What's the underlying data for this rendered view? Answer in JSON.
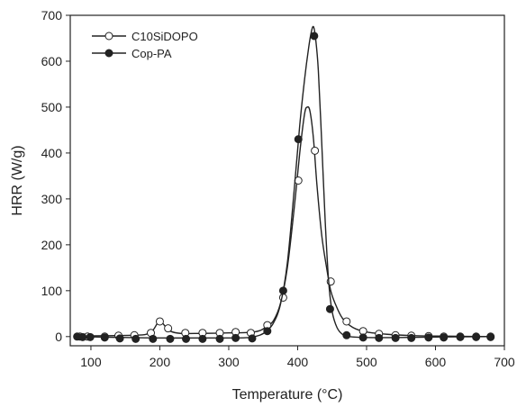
{
  "chart_data": {
    "type": "line",
    "title": "",
    "xlabel": "Temperature (°C)",
    "ylabel": "HRR (W/g)",
    "xlim": [
      70,
      700
    ],
    "ylim": [
      -20,
      700
    ],
    "x_ticks": [
      100,
      200,
      300,
      400,
      500,
      600,
      700
    ],
    "y_ticks": [
      0,
      100,
      200,
      300,
      400,
      500,
      600,
      700
    ],
    "grid": false,
    "legend_position": "top-left",
    "series": [
      {
        "name": "C10SiDOPO",
        "marker": "open-circle",
        "color": "#222222",
        "curve": [
          [
            80,
            1
          ],
          [
            120,
            2
          ],
          [
            160,
            3
          ],
          [
            180,
            5
          ],
          [
            190,
            14
          ],
          [
            197,
            30
          ],
          [
            202,
            32
          ],
          [
            208,
            22
          ],
          [
            215,
            12
          ],
          [
            230,
            7
          ],
          [
            260,
            7
          ],
          [
            300,
            8
          ],
          [
            330,
            9
          ],
          [
            345,
            13
          ],
          [
            355,
            22
          ],
          [
            365,
            35
          ],
          [
            375,
            72
          ],
          [
            385,
            150
          ],
          [
            395,
            280
          ],
          [
            403,
            400
          ],
          [
            410,
            485
          ],
          [
            414,
            500
          ],
          [
            418,
            490
          ],
          [
            423,
            430
          ],
          [
            428,
            330
          ],
          [
            435,
            220
          ],
          [
            442,
            150
          ],
          [
            448,
            100
          ],
          [
            455,
            70
          ],
          [
            465,
            40
          ],
          [
            480,
            20
          ],
          [
            500,
            10
          ],
          [
            530,
            5
          ],
          [
            570,
            2
          ],
          [
            620,
            1
          ],
          [
            680,
            0
          ]
        ],
        "markers": [
          [
            84,
            0
          ],
          [
            95,
            0
          ],
          [
            120,
            0
          ],
          [
            140,
            2
          ],
          [
            163,
            3
          ],
          [
            187,
            8
          ],
          [
            200,
            33
          ],
          [
            212,
            18
          ],
          [
            237,
            8
          ],
          [
            262,
            8
          ],
          [
            287,
            8
          ],
          [
            310,
            10
          ],
          [
            332,
            8
          ],
          [
            356,
            25
          ],
          [
            379,
            85
          ],
          [
            401,
            340
          ],
          [
            425,
            405
          ],
          [
            448,
            120
          ],
          [
            471,
            33
          ],
          [
            495,
            12
          ],
          [
            518,
            6
          ],
          [
            542,
            3
          ],
          [
            565,
            2
          ],
          [
            590,
            1
          ],
          [
            612,
            0
          ],
          [
            636,
            0
          ],
          [
            659,
            0
          ],
          [
            680,
            0
          ]
        ]
      },
      {
        "name": "Cop-PA",
        "marker": "filled-circle",
        "color": "#222222",
        "curve": [
          [
            80,
            0
          ],
          [
            150,
            -2
          ],
          [
            200,
            -3
          ],
          [
            260,
            -3
          ],
          [
            300,
            -3
          ],
          [
            330,
            -2
          ],
          [
            345,
            3
          ],
          [
            355,
            12
          ],
          [
            365,
            30
          ],
          [
            375,
            70
          ],
          [
            385,
            160
          ],
          [
            395,
            320
          ],
          [
            403,
            460
          ],
          [
            410,
            560
          ],
          [
            416,
            630
          ],
          [
            420,
            665
          ],
          [
            423,
            675
          ],
          [
            426,
            650
          ],
          [
            430,
            580
          ],
          [
            435,
            420
          ],
          [
            440,
            250
          ],
          [
            445,
            120
          ],
          [
            450,
            55
          ],
          [
            457,
            20
          ],
          [
            465,
            5
          ],
          [
            475,
            0
          ],
          [
            500,
            -2
          ],
          [
            550,
            -2
          ],
          [
            600,
            -1
          ],
          [
            680,
            0
          ]
        ],
        "markers": [
          [
            80,
            0
          ],
          [
            88,
            -1
          ],
          [
            99,
            -1
          ],
          [
            120,
            -2
          ],
          [
            142,
            -4
          ],
          [
            165,
            -5
          ],
          [
            190,
            -5
          ],
          [
            215,
            -5
          ],
          [
            238,
            -5
          ],
          [
            262,
            -5
          ],
          [
            287,
            -5
          ],
          [
            310,
            -3
          ],
          [
            334,
            -4
          ],
          [
            356,
            12
          ],
          [
            379,
            100
          ],
          [
            401,
            430
          ],
          [
            424,
            655
          ],
          [
            447,
            60
          ],
          [
            471,
            3
          ],
          [
            495,
            -2
          ],
          [
            518,
            -3
          ],
          [
            542,
            -3
          ],
          [
            565,
            -3
          ],
          [
            590,
            -2
          ],
          [
            612,
            -2
          ],
          [
            636,
            -1
          ],
          [
            659,
            -1
          ],
          [
            680,
            -1
          ]
        ]
      }
    ]
  }
}
